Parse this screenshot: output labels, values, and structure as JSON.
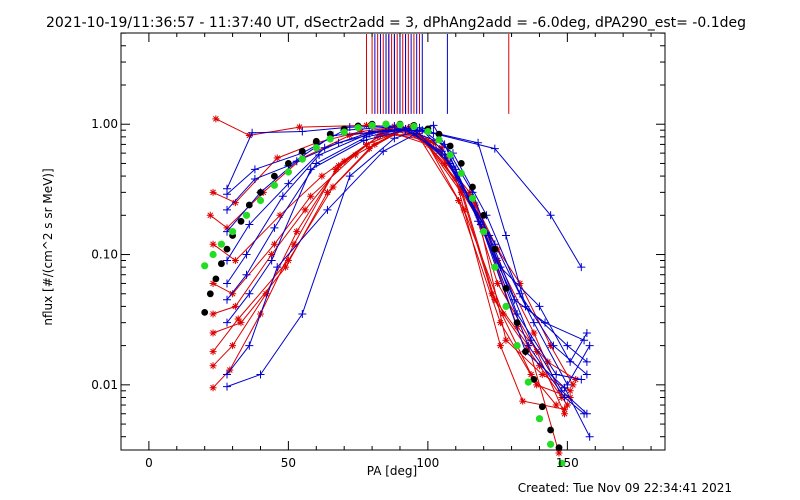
{
  "chart_data": {
    "type": "line",
    "title": "2021-10-19/11:36:57 - 11:37:40 UT, dSectr2add = 3, dPhAng2add = -6.0deg, dPA290_est= -0.1deg",
    "xlabel": "PA [deg]",
    "ylabel": "nflux [#/(cm^2 s sr MeV)]",
    "footer": "Created: Tue Nov 09 22:34:41 2021",
    "xlim": [
      -10,
      185
    ],
    "ylim_log10": [
      -2.5,
      0.7
    ],
    "x_ticks": [
      0,
      50,
      100,
      150
    ],
    "x_tick_labels": [
      "0",
      "50",
      "100",
      "150"
    ],
    "y_ticks": [
      0.01,
      0.1,
      1.0
    ],
    "y_tick_labels": [
      "0.01",
      "0.10",
      "1.00"
    ],
    "colors": {
      "red": "#dd0000",
      "blue": "#0000cc",
      "black": "#000000",
      "green": "#22dd22"
    },
    "markers": {
      "red": [
        78,
        80,
        82,
        84,
        85,
        86,
        87,
        88,
        89,
        90,
        91,
        92,
        93,
        95,
        97,
        129
      ],
      "blue": [
        81,
        83,
        85,
        86,
        88,
        90,
        92,
        94,
        96,
        98,
        107
      ]
    },
    "series": [
      {
        "name": "red-1",
        "color": "red",
        "x": [
          24,
          36,
          54,
          78,
          88,
          100,
          115,
          125,
          133,
          144,
          152
        ],
        "y": [
          1.1,
          0.82,
          0.95,
          0.98,
          0.96,
          0.75,
          0.3,
          0.11,
          0.06,
          0.02,
          0.01
        ]
      },
      {
        "name": "red-2",
        "color": "red",
        "x": [
          23,
          31,
          46,
          60,
          76,
          89,
          102,
          117,
          125,
          138,
          148
        ],
        "y": [
          0.3,
          0.25,
          0.55,
          0.72,
          0.88,
          0.95,
          0.72,
          0.24,
          0.09,
          0.025,
          0.008
        ]
      },
      {
        "name": "red-3",
        "color": "red",
        "x": [
          22,
          28,
          41,
          55,
          72,
          86,
          98,
          112,
          123,
          137,
          146
        ],
        "y": [
          0.2,
          0.16,
          0.3,
          0.55,
          0.82,
          0.92,
          0.78,
          0.3,
          0.05,
          0.012,
          0.007
        ]
      },
      {
        "name": "red-4",
        "color": "red",
        "x": [
          23,
          31,
          47,
          62,
          78,
          91,
          104,
          115,
          125,
          139,
          149
        ],
        "y": [
          0.12,
          0.09,
          0.2,
          0.4,
          0.7,
          0.9,
          0.62,
          0.28,
          0.06,
          0.018,
          0.006
        ]
      },
      {
        "name": "red-5",
        "color": "red",
        "x": [
          23,
          30,
          45,
          58,
          74,
          88,
          100,
          112,
          124,
          136,
          147
        ],
        "y": [
          0.06,
          0.05,
          0.12,
          0.28,
          0.58,
          0.85,
          0.7,
          0.32,
          0.045,
          0.02,
          0.003
        ]
      },
      {
        "name": "red-6",
        "color": "red",
        "x": [
          23,
          31,
          44,
          56,
          70,
          83,
          97,
          110,
          126,
          134,
          149
        ],
        "y": [
          0.035,
          0.04,
          0.1,
          0.22,
          0.52,
          0.83,
          0.82,
          0.38,
          0.02,
          0.0075,
          0.0065
        ]
      },
      {
        "name": "red-7",
        "color": "red",
        "x": [
          23,
          33,
          49,
          64,
          79,
          92,
          105,
          118,
          128,
          141,
          151
        ],
        "y": [
          0.025,
          0.03,
          0.08,
          0.3,
          0.65,
          0.93,
          0.66,
          0.2,
          0.022,
          0.012,
          0.009
        ]
      },
      {
        "name": "red-8",
        "color": "red",
        "x": [
          23,
          32,
          50,
          66,
          81,
          94,
          106,
          120,
          132,
          143,
          153
        ],
        "y": [
          0.018,
          0.032,
          0.09,
          0.33,
          0.7,
          0.96,
          0.5,
          0.16,
          0.028,
          0.015,
          0.011
        ]
      },
      {
        "name": "red-9",
        "color": "red",
        "x": [
          23,
          30,
          42,
          53,
          68,
          84,
          99,
          113,
          127,
          140,
          150
        ],
        "y": [
          0.014,
          0.02,
          0.05,
          0.15,
          0.48,
          0.86,
          0.76,
          0.22,
          0.035,
          0.014,
          0.007
        ]
      },
      {
        "name": "red-10",
        "color": "red",
        "x": [
          23,
          29,
          40,
          52,
          67,
          82,
          96,
          111,
          126,
          139,
          151
        ],
        "y": [
          0.0095,
          0.013,
          0.035,
          0.12,
          0.45,
          0.8,
          0.85,
          0.26,
          0.03,
          0.01,
          0.008
        ]
      },
      {
        "name": "blue-1",
        "color": "blue",
        "x": [
          28,
          37,
          55,
          72,
          88,
          100,
          118,
          128,
          135,
          150,
          157
        ],
        "y": [
          0.32,
          0.86,
          0.88,
          0.95,
          0.97,
          0.88,
          0.72,
          0.14,
          0.04,
          0.02,
          0.015
        ]
      },
      {
        "name": "blue-2",
        "color": "blue",
        "x": [
          28,
          38,
          55,
          70,
          86,
          102,
          124,
          144,
          155
        ],
        "y": [
          0.29,
          0.45,
          0.6,
          0.9,
          0.95,
          0.85,
          0.65,
          0.2,
          0.08
        ]
      },
      {
        "name": "blue-3",
        "color": "blue",
        "x": [
          28,
          38,
          50,
          66,
          85,
          98,
          108,
          118,
          131,
          142,
          156
        ],
        "y": [
          0.22,
          0.38,
          0.48,
          0.82,
          0.88,
          0.9,
          0.55,
          0.18,
          0.045,
          0.03,
          0.022
        ]
      },
      {
        "name": "blue-4",
        "color": "blue",
        "x": [
          28,
          40,
          53,
          68,
          85,
          97,
          109,
          121,
          133,
          145,
          157
        ],
        "y": [
          0.15,
          0.3,
          0.52,
          0.72,
          0.9,
          0.94,
          0.6,
          0.2,
          0.05,
          0.02,
          0.012
        ]
      },
      {
        "name": "blue-5",
        "color": "blue",
        "x": [
          28,
          36,
          50,
          63,
          80,
          95,
          110,
          126,
          140,
          151,
          157
        ],
        "y": [
          0.09,
          0.17,
          0.35,
          0.66,
          0.88,
          0.92,
          0.45,
          0.08,
          0.04,
          0.015,
          0.025
        ]
      },
      {
        "name": "blue-6",
        "color": "blue",
        "x": [
          28,
          35,
          48,
          61,
          79,
          93,
          108,
          124,
          138,
          150,
          158
        ],
        "y": [
          0.06,
          0.1,
          0.28,
          0.58,
          0.85,
          0.93,
          0.5,
          0.12,
          0.03,
          0.01,
          0.02
        ]
      },
      {
        "name": "blue-7",
        "color": "blue",
        "x": [
          28,
          35,
          45,
          60,
          78,
          92,
          106,
          122,
          137,
          148,
          157
        ],
        "y": [
          0.045,
          0.07,
          0.16,
          0.5,
          0.8,
          0.92,
          0.58,
          0.14,
          0.022,
          0.009,
          0.006
        ]
      },
      {
        "name": "blue-8",
        "color": "blue",
        "x": [
          28,
          36,
          44,
          58,
          77,
          92,
          105,
          119,
          135,
          149,
          158
        ],
        "y": [
          0.03,
          0.05,
          0.09,
          0.45,
          0.75,
          0.9,
          0.62,
          0.17,
          0.018,
          0.0095,
          0.004
        ]
      },
      {
        "name": "blue-9",
        "color": "blue",
        "x": [
          28,
          36,
          46,
          64,
          84,
          96,
          106,
          120,
          136,
          149,
          156
        ],
        "y": [
          0.012,
          0.02,
          0.08,
          0.22,
          0.62,
          0.85,
          0.7,
          0.15,
          0.02,
          0.008,
          0.006
        ]
      },
      {
        "name": "blue-10",
        "color": "blue",
        "x": [
          28,
          40,
          55,
          72,
          88,
          102,
          116,
          132,
          146,
          155
        ],
        "y": [
          0.0097,
          0.012,
          0.035,
          0.4,
          0.78,
          0.98,
          0.3,
          0.035,
          0.012,
          0.011
        ]
      },
      {
        "name": "fit-black",
        "color": "black",
        "style": "dots",
        "x": [
          20,
          22,
          24,
          26,
          28,
          30,
          33,
          36,
          40,
          45,
          50,
          55,
          60,
          65,
          70,
          75,
          80,
          85,
          90,
          95,
          100,
          104,
          108,
          112,
          116,
          120,
          124,
          128,
          132,
          135,
          138,
          141,
          144,
          147
        ],
        "y": [
          0.036,
          0.05,
          0.065,
          0.085,
          0.11,
          0.14,
          0.18,
          0.24,
          0.3,
          0.4,
          0.5,
          0.62,
          0.74,
          0.84,
          0.92,
          0.97,
          1.0,
          1.0,
          1.0,
          0.98,
          0.92,
          0.84,
          0.68,
          0.5,
          0.33,
          0.2,
          0.11,
          0.055,
          0.03,
          0.018,
          0.011,
          0.0068,
          0.0045,
          0.0033
        ]
      },
      {
        "name": "fit-green",
        "color": "green",
        "style": "dots",
        "x": [
          20,
          23,
          26,
          30,
          35,
          40,
          45,
          50,
          55,
          60,
          65,
          70,
          75,
          80,
          85,
          90,
          95,
          100,
          104,
          108,
          112,
          116,
          120,
          124,
          128,
          132,
          136,
          140,
          144,
          148
        ],
        "y": [
          0.082,
          0.1,
          0.12,
          0.15,
          0.2,
          0.26,
          0.34,
          0.43,
          0.54,
          0.66,
          0.77,
          0.87,
          0.94,
          0.98,
          1.0,
          0.99,
          0.96,
          0.88,
          0.76,
          0.58,
          0.42,
          0.27,
          0.15,
          0.08,
          0.04,
          0.02,
          0.0105,
          0.0055,
          0.0035,
          0.0025
        ]
      }
    ]
  }
}
